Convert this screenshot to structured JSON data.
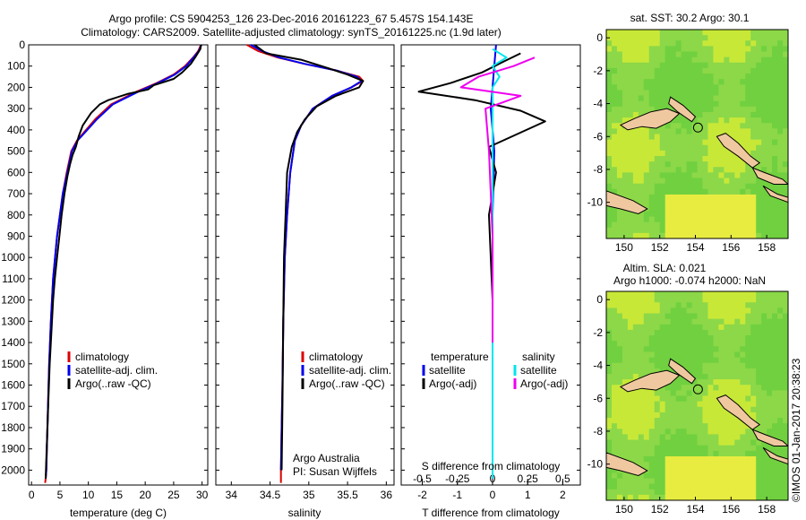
{
  "title": {
    "line1": "Argo profile: CS 5904253_126 23-Dec-2016 20161223_67 5.457S 154.143E",
    "line2": "Climatology: CARS2009. Satellite-adjusted climatology: synTS_20161225.nc (1.9d later)"
  },
  "colors": {
    "clim": "#dd0000",
    "satellite": "#0000ee",
    "argo": "#000000",
    "sat_salinity": "#00e5ee",
    "argo_salinity": "#ee00ee",
    "land": "#f0c8a0"
  },
  "chart_data": [
    {
      "id": "temperature",
      "type": "line",
      "xlabel": "temperature (deg C)",
      "ylabel": "",
      "xlim": [
        -0.5,
        31
      ],
      "ylim": [
        2070,
        0
      ],
      "xticks": [
        0,
        5,
        10,
        15,
        20,
        25,
        30
      ],
      "yticks": [
        0,
        100,
        200,
        300,
        400,
        500,
        600,
        700,
        800,
        900,
        1000,
        1100,
        1200,
        1300,
        1400,
        1500,
        1600,
        1700,
        1800,
        1900,
        2000
      ],
      "legend": [
        "climatology",
        "satellite-adj. clim.",
        "Argo(..raw -QC)"
      ],
      "series": [
        {
          "name": "climatology",
          "color": "clim",
          "x": [
            29.8,
            29.3,
            28.4,
            27,
            25,
            22,
            18.5,
            14,
            11.2,
            9.6,
            8,
            7,
            6.2,
            5.5,
            4.5,
            3.8,
            3.4,
            3.1,
            2.9,
            2.7,
            2.6,
            2.5,
            2.4
          ],
          "y": [
            0,
            30,
            60,
            100,
            140,
            180,
            220,
            280,
            350,
            400,
            450,
            500,
            600,
            700,
            900,
            1100,
            1300,
            1500,
            1700,
            1900,
            2000,
            2040,
            2060
          ]
        },
        {
          "name": "satellite-adj. clim.",
          "color": "satellite",
          "x": [
            29.9,
            29.4,
            28.5,
            27.2,
            25.2,
            22.2,
            18.8,
            14.3,
            11.5,
            9.8,
            8.1,
            7.1,
            6.3,
            5.5,
            4.5,
            3.8,
            3.4,
            3.1,
            2.9,
            2.7,
            2.6,
            2.5
          ],
          "y": [
            0,
            30,
            60,
            100,
            140,
            180,
            220,
            280,
            350,
            400,
            450,
            500,
            600,
            700,
            900,
            1100,
            1300,
            1500,
            1700,
            1900,
            2000,
            2040
          ]
        },
        {
          "name": "Argo(..raw -QC)",
          "color": "argo",
          "x": [
            29.8,
            29.7,
            29,
            28,
            26.5,
            25,
            21.5,
            20.5,
            17,
            13.5,
            12,
            10.5,
            9,
            8.3,
            7.8,
            7.2,
            6.8,
            6.3,
            5.8,
            5.3,
            4.9,
            4.5,
            4.1,
            3.8,
            3.5,
            3.2,
            3,
            2.8,
            2.6,
            2.5
          ],
          "y": [
            0,
            20,
            50,
            90,
            130,
            160,
            190,
            210,
            230,
            260,
            280,
            320,
            380,
            430,
            480,
            520,
            560,
            620,
            700,
            800,
            900,
            1000,
            1100,
            1200,
            1350,
            1500,
            1650,
            1800,
            1950,
            2040
          ]
        }
      ]
    },
    {
      "id": "salinity",
      "type": "line",
      "xlabel": "salinity",
      "ylabel": "",
      "xlim": [
        33.8,
        36.1
      ],
      "ylim": [
        2070,
        0
      ],
      "xticks": [
        34,
        34.5,
        35,
        35.5,
        36
      ],
      "legend": [
        "climatology",
        "satellite-adj. clim.",
        "Argo(..raw -QC)"
      ],
      "annotation": [
        "Argo Australia",
        "PI: Susan Wijffels"
      ],
      "series": [
        {
          "name": "climatology",
          "color": "clim",
          "x": [
            34.2,
            34.35,
            34.6,
            34.95,
            35.35,
            35.65,
            35.7,
            35.55,
            35.3,
            35.05,
            34.9,
            34.82,
            34.76,
            34.72,
            34.69,
            34.67,
            34.66,
            34.65,
            34.64,
            34.64
          ],
          "y": [
            0,
            30,
            60,
            90,
            120,
            150,
            170,
            200,
            240,
            300,
            380,
            450,
            600,
            800,
            1000,
            1300,
            1600,
            1800,
            2000,
            2060
          ]
        },
        {
          "name": "satellite-adj. clim.",
          "color": "satellite",
          "x": [
            34.25,
            34.4,
            34.62,
            34.95,
            35.35,
            35.62,
            35.68,
            35.55,
            35.3,
            35.05,
            34.9,
            34.82,
            34.76,
            34.72,
            34.69,
            34.67,
            34.66,
            34.65,
            34.64
          ],
          "y": [
            0,
            30,
            60,
            90,
            120,
            150,
            170,
            200,
            240,
            300,
            380,
            450,
            600,
            800,
            1000,
            1300,
            1600,
            1800,
            2000
          ]
        },
        {
          "name": "Argo(..raw -QC)",
          "color": "argo",
          "x": [
            34.3,
            34.45,
            34.9,
            35.25,
            35.5,
            35.7,
            35.65,
            35.35,
            35.1,
            34.95,
            34.85,
            34.78,
            34.72,
            34.7,
            34.68,
            34.67,
            34.66,
            34.65
          ],
          "y": [
            0,
            40,
            70,
            110,
            140,
            170,
            200,
            240,
            290,
            350,
            410,
            480,
            600,
            800,
            1000,
            1300,
            1700,
            2000
          ]
        }
      ]
    },
    {
      "id": "difference",
      "type": "line",
      "xlabel": "T difference from climatology",
      "top_label": "S difference from climatology",
      "xlim": [
        -2.6,
        2.5
      ],
      "ylim": [
        2070,
        0
      ],
      "xticks": [
        -2,
        -1,
        0,
        1,
        2
      ],
      "top_xticks": [
        "-0.5",
        "-0.25",
        "0",
        "0.25",
        "0.5"
      ],
      "legend_temperature": [
        "temperature",
        "satellite",
        "Argo(-adj)"
      ],
      "legend_salinity": [
        "salinity",
        "satellite",
        "Argo(-adj)"
      ],
      "series": [
        {
          "name": "temperature satellite",
          "color": "satellite",
          "x": [
            0.1,
            0.05,
            0,
            -0.05,
            0,
            0.05,
            0,
            0,
            0,
            0
          ],
          "y": [
            0,
            100,
            200,
            300,
            400,
            500,
            800,
            1200,
            1600,
            2040
          ]
        },
        {
          "name": "temperature Argo(-adj)",
          "color": "argo",
          "x": [
            0.8,
            0.3,
            -0.3,
            -1.2,
            -2.1,
            -0.5,
            0.8,
            1.5,
            0.7,
            -0.1,
            0.1,
            -0.1,
            0,
            0
          ],
          "y": [
            40,
            80,
            130,
            180,
            220,
            260,
            310,
            360,
            420,
            480,
            600,
            800,
            1200,
            1600
          ]
        },
        {
          "name": "salinity satellite",
          "color": "sat_salinity",
          "x": [
            0,
            0.4,
            0,
            0.2,
            0,
            0,
            0,
            0,
            0
          ],
          "y": [
            20,
            60,
            100,
            150,
            200,
            400,
            800,
            1400,
            2040
          ]
        },
        {
          "name": "salinity Argo(-adj)",
          "color": "argo_salinity",
          "x": [
            1.2,
            0.6,
            -0.4,
            -0.9,
            0.8,
            -0.2,
            -0.1,
            0,
            0
          ],
          "y": [
            60,
            100,
            150,
            200,
            240,
            300,
            500,
            900,
            1400
          ]
        }
      ]
    },
    {
      "id": "sst_map",
      "type": "heatmap",
      "title": "sat. SST: 30.2  Argo: 30.1",
      "xticks": [
        150,
        152,
        154,
        156,
        158
      ],
      "yticks": [
        0,
        -2,
        -4,
        -6,
        -8,
        -10
      ],
      "marker": [
        154.143,
        -5.457
      ]
    },
    {
      "id": "sla_map",
      "type": "heatmap",
      "title_line1": "Altim. SLA: 0.021",
      "title_line2": "Argo h1000: -0.074  h2000: NaN",
      "xticks": [
        150,
        152,
        154,
        156,
        158
      ],
      "yticks": [
        0,
        -2,
        -4,
        -6,
        -8,
        -10
      ],
      "marker": [
        154.143,
        -5.457
      ]
    }
  ],
  "footer": "©IMOS 01-Jan-2017 20:38:23"
}
